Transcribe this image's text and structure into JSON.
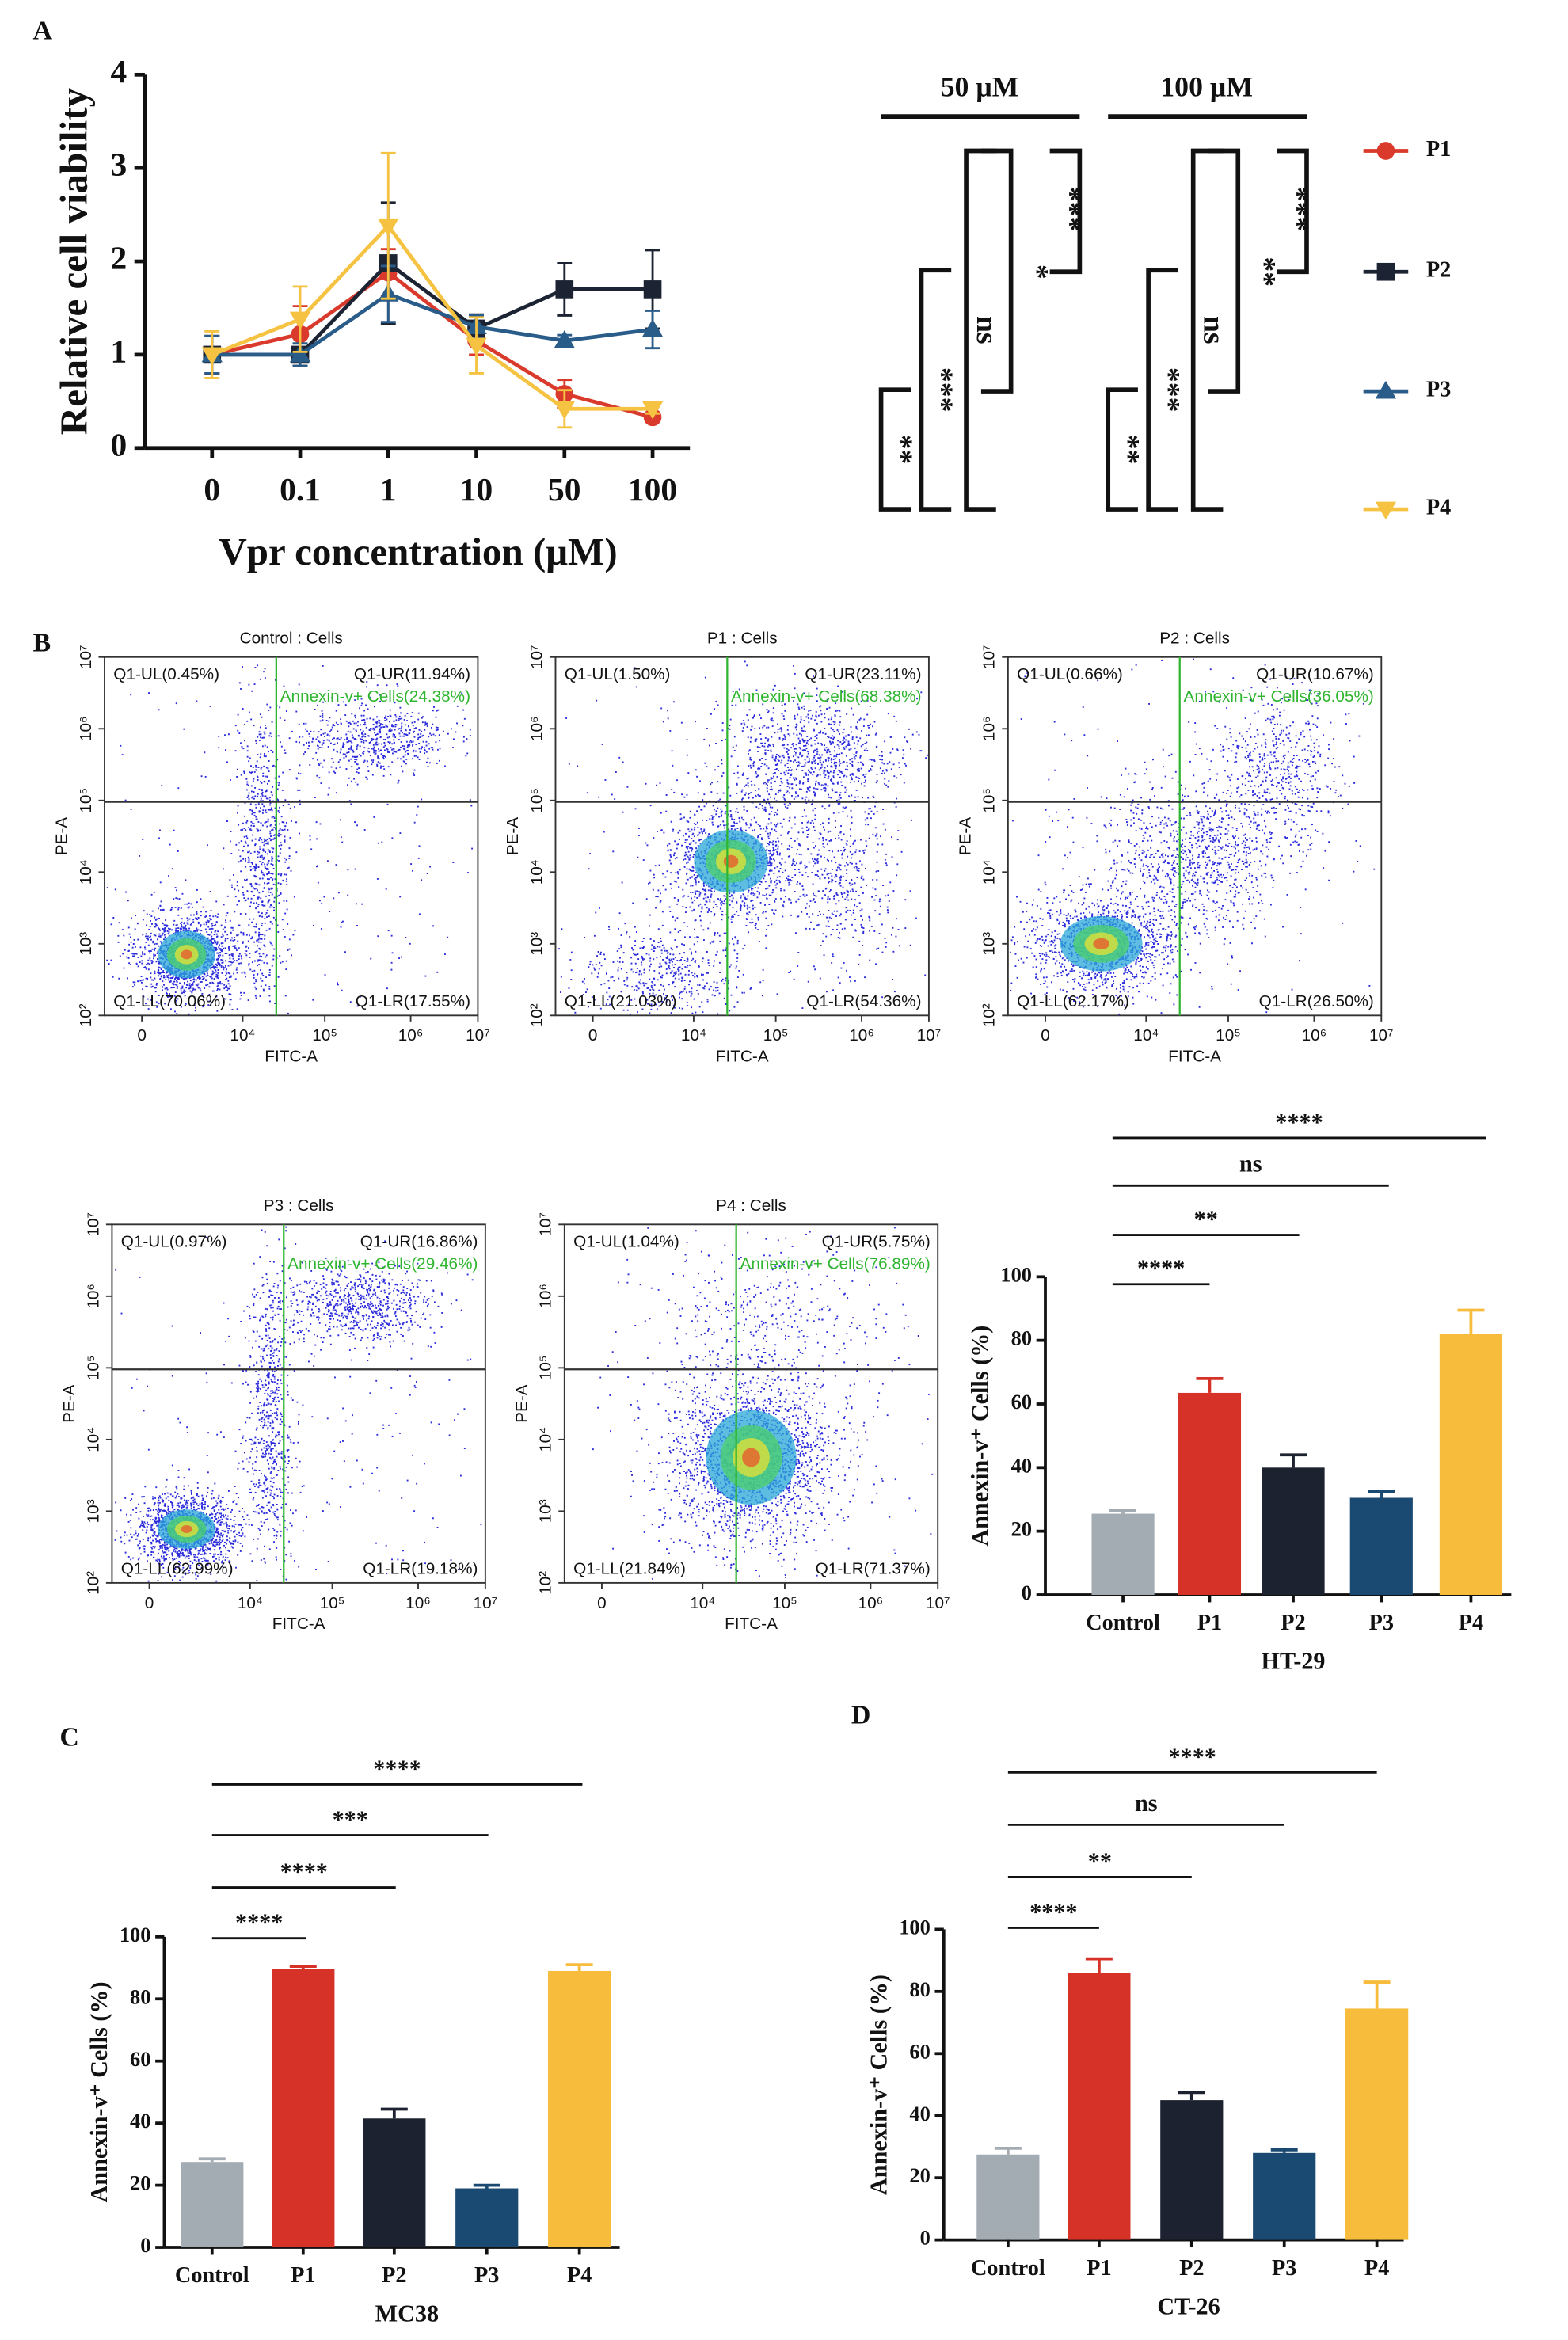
{
  "chart_data": [
    {
      "type": "line",
      "panel": "A",
      "ylabel": "Relative cell viability",
      "xlabel": "Vpr concentration (μM)",
      "categories": [
        "0",
        "0.1",
        "1",
        "10",
        "50",
        "100"
      ],
      "ylim": [
        0,
        4
      ],
      "yticks": [
        0,
        1,
        2,
        3,
        4
      ],
      "series": [
        {
          "name": "P1",
          "color": "#d93a2b",
          "marker": "circle",
          "values": [
            1.0,
            1.22,
            1.88,
            1.15,
            0.58,
            0.33
          ],
          "errors": [
            0.2,
            0.3,
            0.25,
            0.15,
            0.15,
            0.05
          ]
        },
        {
          "name": "P2",
          "color": "#1c2333",
          "marker": "square",
          "values": [
            1.0,
            1.0,
            1.98,
            1.28,
            1.7,
            1.7
          ],
          "errors": [
            0.2,
            0.12,
            0.65,
            0.15,
            0.28,
            0.42
          ]
        },
        {
          "name": "P3",
          "color": "#2a5c8a",
          "marker": "triangle-up",
          "values": [
            1.0,
            1.0,
            1.65,
            1.3,
            1.15,
            1.27
          ],
          "errors": [
            0.2,
            0.12,
            0.3,
            0.12,
            0.06,
            0.2
          ]
        },
        {
          "name": "P4",
          "color": "#f5c242",
          "marker": "triangle-down",
          "values": [
            1.0,
            1.38,
            2.38,
            1.1,
            0.42,
            0.42
          ],
          "errors": [
            0.25,
            0.35,
            0.78,
            0.3,
            0.2,
            0.05
          ]
        }
      ],
      "significance_groups": [
        {
          "title": "50 μM",
          "labels": [
            "***",
            "*",
            "ns",
            "***",
            "**"
          ]
        },
        {
          "title": "100 μM",
          "labels": [
            "***",
            "**",
            "ns",
            "***",
            "**"
          ]
        }
      ]
    },
    {
      "type": "bar",
      "xlabel": "HT-29",
      "ylabel": "Annexin-v⁺ Cells (%)",
      "categories": [
        "Control",
        "P1",
        "P2",
        "P3",
        "P4"
      ],
      "values": [
        25.5,
        63.5,
        40,
        30.5,
        82
      ],
      "errors": [
        1,
        4.5,
        4,
        2,
        7.5
      ],
      "colors": [
        "#a3abb3",
        "#d63228",
        "#1c2230",
        "#1a4a72",
        "#f7bc3c"
      ],
      "ylim": [
        0,
        100
      ],
      "yticks": [
        0,
        20,
        40,
        60,
        80,
        100
      ],
      "significance": [
        "****",
        "**",
        "ns",
        "****"
      ]
    },
    {
      "type": "bar",
      "panel": "C",
      "xlabel": "MC38",
      "ylabel": "Annexin-v⁺ Cells (%)",
      "categories": [
        "Control",
        "P1",
        "P2",
        "P3",
        "P4"
      ],
      "values": [
        27.5,
        89.5,
        41.5,
        19,
        89
      ],
      "errors": [
        1,
        1,
        3,
        1,
        2
      ],
      "colors": [
        "#a3abb3",
        "#d63228",
        "#1c2230",
        "#1a4a72",
        "#f7bc3c"
      ],
      "ylim": [
        0,
        100
      ],
      "yticks": [
        0,
        20,
        40,
        60,
        80,
        100
      ],
      "significance": [
        "****",
        "****",
        "***",
        "****"
      ]
    },
    {
      "type": "bar",
      "panel": "D",
      "xlabel": "CT-26",
      "ylabel": "Annexin-v⁺ Cells (%)",
      "categories": [
        "Control",
        "P1",
        "P2",
        "P3",
        "P4"
      ],
      "values": [
        27.5,
        86,
        45,
        28,
        74.5
      ],
      "errors": [
        2,
        4.5,
        2.5,
        1,
        8.5
      ],
      "colors": [
        "#a3abb3",
        "#d63228",
        "#1c2230",
        "#1a4a72",
        "#f7bc3c"
      ],
      "ylim": [
        0,
        100
      ],
      "yticks": [
        0,
        20,
        40,
        60,
        80,
        100
      ],
      "significance": [
        "****",
        "**",
        "ns",
        "****"
      ]
    }
  ],
  "flow_cytometry": {
    "panel": "B",
    "xlabel": "FITC-A",
    "ylabel": "PE-A",
    "xticks": [
      "0",
      "10⁴",
      "10⁵",
      "10⁶",
      "10⁷"
    ],
    "yticks": [
      "10²",
      "10³",
      "10⁴",
      "10⁵",
      "10⁶",
      "10⁷"
    ],
    "plots": [
      {
        "title": "Control : Cells",
        "ul": "Q1-UL(0.45%)",
        "ur": "Q1-UR(11.94%)",
        "annexin": "Annexin-v+ Cells(24.38%)",
        "ll": "Q1-LL(70.06%)",
        "lr": "Q1-LR(17.55%)"
      },
      {
        "title": "P1 : Cells",
        "ul": "Q1-UL(1.50%)",
        "ur": "Q1-UR(23.11%)",
        "annexin": "Annexin-v+ Cells(68.38%)",
        "ll": "Q1-LL(21.03%)",
        "lr": "Q1-LR(54.36%)"
      },
      {
        "title": "P2 : Cells",
        "ul": "Q1-UL(0.66%)",
        "ur": "Q1-UR(10.67%)",
        "annexin": "Annexin-v+ Cells(36.05%)",
        "ll": "Q1-LL(62.17%)",
        "lr": "Q1-LR(26.50%)"
      },
      {
        "title": "P3 : Cells",
        "ul": "Q1-UL(0.97%)",
        "ur": "Q1-UR(16.86%)",
        "annexin": "Annexin-v+ Cells(29.46%)",
        "ll": "Q1-LL(62.99%)",
        "lr": "Q1-LR(19.18%)"
      },
      {
        "title": "P4 : Cells",
        "ul": "Q1-UL(1.04%)",
        "ur": "Q1-UR(5.75%)",
        "annexin": "Annexin-v+ Cells(76.89%)",
        "ll": "Q1-LL(21.84%)",
        "lr": "Q1-LR(71.37%)"
      }
    ]
  }
}
